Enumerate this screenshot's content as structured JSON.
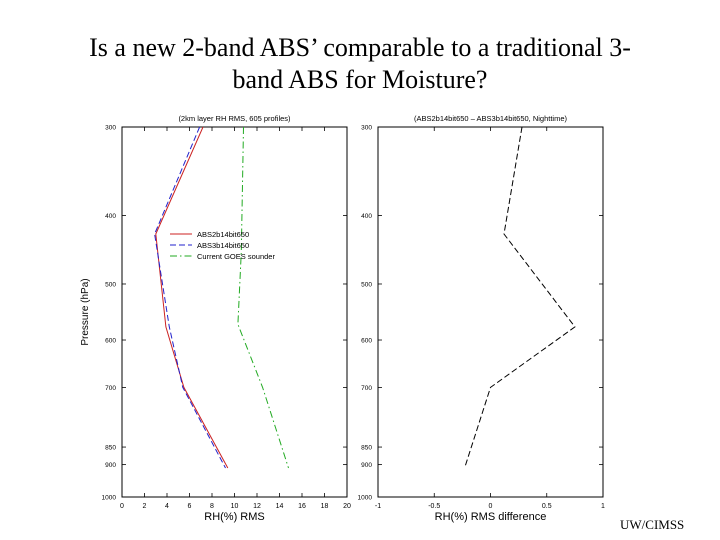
{
  "slide": {
    "title_line1": "Is a new 2-band ABS’ comparable to a traditional 3-",
    "title_line2": "band ABS for Moisture?",
    "credit": "UW/CIMSS"
  },
  "chart_data": [
    {
      "type": "line",
      "title": "(2km layer RH RMS, 605 profiles)",
      "xlabel": "RH(%) RMS",
      "ylabel": "Pressure (hPa)",
      "xlim": [
        0,
        20
      ],
      "ylim": [
        1000,
        300
      ],
      "y_axis_inverted": true,
      "x_ticks": [
        "0",
        "2",
        "4",
        "6",
        "8",
        "10",
        "12",
        "14",
        "16",
        "18",
        "20"
      ],
      "y_ticks": [
        "300",
        "400",
        "500",
        "600",
        "700",
        "850",
        "900",
        "1000"
      ],
      "legend_position": "upper-middle-left",
      "series": [
        {
          "name": "ABS2b14bit650",
          "color": "#cc2222",
          "style": "solid",
          "points": [
            [
              7.2,
              300
            ],
            [
              3.0,
              425
            ],
            [
              3.9,
              575
            ],
            [
              5.5,
              700
            ],
            [
              9.4,
              910
            ]
          ]
        },
        {
          "name": "ABS3b14bit650",
          "color": "#2222cc",
          "style": "dashed",
          "points": [
            [
              6.9,
              300
            ],
            [
              2.9,
              425
            ],
            [
              4.2,
              575
            ],
            [
              5.4,
              700
            ],
            [
              9.2,
              910
            ]
          ]
        },
        {
          "name": "Current GOES sounder",
          "color": "#22aa22",
          "style": "dashdot",
          "points": [
            [
              10.8,
              300
            ],
            [
              10.6,
              450
            ],
            [
              10.3,
              570
            ],
            [
              12.5,
              700
            ],
            [
              14.8,
              910
            ]
          ]
        }
      ]
    },
    {
      "type": "line",
      "title": "(ABS2b14bit650 – ABS3b14bit650, Nighttime)",
      "xlabel": "RH(%) RMS difference",
      "ylabel": "",
      "xlim": [
        -1,
        1
      ],
      "ylim": [
        1000,
        300
      ],
      "y_axis_inverted": true,
      "x_ticks": [
        "-1",
        "-0.5",
        "0",
        "0.5",
        "1"
      ],
      "y_ticks": [
        "300",
        "400",
        "500",
        "600",
        "700",
        "850",
        "900",
        "1000"
      ],
      "series": [
        {
          "color": "#000000",
          "style": "dashed",
          "points": [
            [
              0.28,
              300
            ],
            [
              0.12,
              425
            ],
            [
              0.75,
              575
            ],
            [
              0.0,
              700
            ],
            [
              -0.23,
              910
            ]
          ]
        }
      ]
    }
  ]
}
